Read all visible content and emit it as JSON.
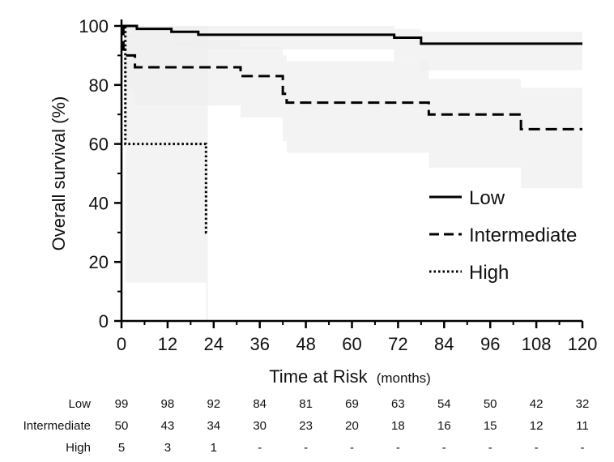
{
  "chart_data": {
    "type": "line",
    "subtype": "kaplan-meier survival curve with confidence bands",
    "xlabel": "Time at Risk",
    "xlabel_unit": "(months)",
    "ylabel": "Overall survival (%)",
    "xlim": [
      0,
      120
    ],
    "ylim": [
      0,
      100
    ],
    "x_ticks": [
      0,
      12,
      24,
      36,
      48,
      60,
      72,
      84,
      96,
      108,
      120
    ],
    "y_ticks": [
      0,
      20,
      40,
      60,
      80,
      100
    ],
    "grid": false,
    "legend_position": "right-middle",
    "series": [
      {
        "name": "Low",
        "line_style": "solid",
        "color": "#000000",
        "x": [
          0,
          1,
          4,
          13,
          20,
          71,
          78,
          120
        ],
        "y": [
          100,
          100,
          99,
          98,
          97,
          96,
          94,
          94
        ],
        "ci_x": [
          0,
          1,
          4,
          13,
          20,
          71,
          78,
          120
        ],
        "ci_lower": [
          100,
          96,
          95,
          93,
          92,
          88,
          85,
          85
        ],
        "ci_upper": [
          100,
          100,
          100,
          100,
          100,
          99,
          98,
          97
        ]
      },
      {
        "name": "Intermediate",
        "line_style": "dashed",
        "color": "#000000",
        "x": [
          0,
          0.5,
          1.5,
          3.5,
          31,
          42,
          43,
          80,
          104,
          120
        ],
        "y": [
          100,
          92,
          90,
          86,
          83,
          77,
          74,
          70,
          65,
          65
        ],
        "ci_x": [
          0,
          0.5,
          1.5,
          3.5,
          31,
          42,
          43,
          80,
          104,
          120
        ],
        "ci_lower": [
          100,
          84,
          78,
          73,
          69,
          61,
          57,
          52,
          45,
          45
        ],
        "ci_upper": [
          100,
          98,
          97,
          95,
          93,
          90,
          88,
          82,
          79,
          79
        ]
      },
      {
        "name": "High",
        "line_style": "dotted",
        "color": "#000000",
        "x": [
          0,
          1,
          22,
          22.5
        ],
        "y": [
          100,
          60,
          30,
          30
        ],
        "ci_x": [
          0,
          1,
          22
        ],
        "ci_lower": [
          100,
          13,
          0
        ],
        "ci_upper": [
          100,
          100,
          100
        ]
      }
    ],
    "risk_table": {
      "times": [
        0,
        12,
        24,
        36,
        48,
        60,
        72,
        84,
        96,
        108,
        120
      ],
      "rows": [
        {
          "label": "Low",
          "values": [
            "99",
            "98",
            "92",
            "84",
            "81",
            "69",
            "63",
            "54",
            "50",
            "42",
            "32"
          ]
        },
        {
          "label": "Intermediate",
          "values": [
            "50",
            "43",
            "34",
            "30",
            "23",
            "20",
            "18",
            "16",
            "15",
            "12",
            "11"
          ]
        },
        {
          "label": "High",
          "values": [
            "5",
            "3",
            "1",
            "-",
            "-",
            "-",
            "-",
            "-",
            "-",
            "-",
            "-"
          ]
        }
      ]
    },
    "band_color": "#eeeeee"
  }
}
